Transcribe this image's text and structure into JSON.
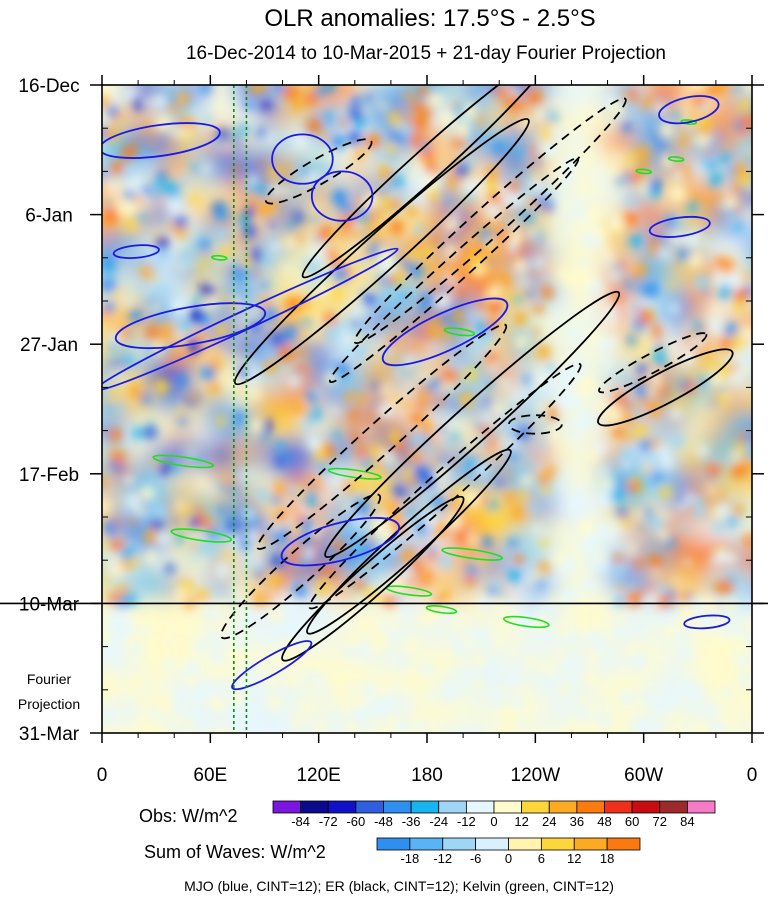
{
  "chart_data": {
    "type": "heatmap",
    "title": "OLR anomalies: 17.5°S - 2.5°S",
    "subtitle": "16-Dec-2014 to 10-Mar-2015 + 21-day Fourier Projection",
    "x_ticks": [
      "0",
      "60E",
      "120E",
      "180",
      "120W",
      "60W",
      "0"
    ],
    "y_ticks": [
      "16-Dec",
      "6-Jan",
      "27-Jan",
      "17-Feb",
      "10-Mar",
      "31-Mar"
    ],
    "y_annotation": [
      "Fourier",
      "Projection"
    ],
    "xlim_lon_east": [
      0,
      360
    ],
    "ylim_days_from_start": [
      0,
      105
    ],
    "projection_start_day": 84,
    "reference_lon_lines": [
      73,
      80
    ],
    "obs_colorbar": {
      "label": "Obs: W/m^2",
      "levels": [
        "-84",
        "-72",
        "-60",
        "-48",
        "-36",
        "-24",
        "-12",
        "0",
        "12",
        "24",
        "36",
        "48",
        "60",
        "72",
        "84"
      ],
      "colors": [
        "#7a16e0",
        "#0a0a8c",
        "#1010c8",
        "#2f5fe0",
        "#2f8ff0",
        "#18b4f0",
        "#9fd6f5",
        "#e6f7ff",
        "#fffbcc",
        "#fdd63c",
        "#fcaa24",
        "#fb7a10",
        "#f03018",
        "#c80c10",
        "#9c2a2a",
        "#f57ac8"
      ]
    },
    "waves_colorbar": {
      "label": "Sum of Waves: W/m^2",
      "levels": [
        "-18",
        "-12",
        "-6",
        "0",
        "6",
        "12",
        "18"
      ],
      "colors": [
        "#2f8ff0",
        "#58b4f5",
        "#9fd6f5",
        "#d8f0ff",
        "#fff4b0",
        "#fdd63c",
        "#fcaa24",
        "#fb7a10"
      ]
    },
    "footer": "MJO (blue, CINT=12); ER (black, CINT=12); Kelvin (green, CINT=12)",
    "contour_colors": {
      "mjo": "#1a1ae0",
      "er": "#000000",
      "kelvin": "#22dd22"
    },
    "mjo_contours": [
      {
        "lon": 32,
        "day": 9,
        "a": 8,
        "b": 2.5,
        "rot": -8
      },
      {
        "lon": 19,
        "day": 27,
        "a": 3,
        "b": 1,
        "rot": -5
      },
      {
        "lon": 49,
        "day": 39,
        "a": 10,
        "b": 3,
        "rot": -10
      },
      {
        "lon": 111,
        "day": 12,
        "a": 4,
        "b": 4,
        "rot": 0
      },
      {
        "lon": 133,
        "day": 18,
        "a": 4,
        "b": 4,
        "rot": 0
      },
      {
        "lon": 80,
        "day": 38,
        "a": 22,
        "b": 1.5,
        "rot": -25
      },
      {
        "lon": 132,
        "day": 74,
        "a": 8,
        "b": 3,
        "rot": -15
      },
      {
        "lon": 325,
        "day": 4,
        "a": 4,
        "b": 2,
        "rot": -12
      },
      {
        "lon": 320,
        "day": 23,
        "a": 4,
        "b": 1.5,
        "rot": -8
      },
      {
        "lon": 335,
        "day": 87,
        "a": 3,
        "b": 1,
        "rot": -5
      },
      {
        "lon": 94,
        "day": 94,
        "a": 6,
        "b": 1.5,
        "rot": -30
      },
      {
        "lon": 190,
        "day": 40,
        "a": 9,
        "b": 3,
        "rot": -25
      }
    ],
    "er_contours": [
      {
        "lon": 240,
        "day": 55,
        "a": 3.5,
        "b": 1.5,
        "rot": 0,
        "dash": true
      },
      {
        "lon": 180,
        "day": 13,
        "a": 22,
        "b": 2.5,
        "rot": -42,
        "dash": false
      },
      {
        "lon": 215,
        "day": 22,
        "a": 24,
        "b": 2.5,
        "rot": -42,
        "dash": true
      },
      {
        "lon": 155,
        "day": 27,
        "a": 26,
        "b": 3,
        "rot": -42,
        "dash": false
      },
      {
        "lon": 195,
        "day": 30,
        "a": 22,
        "b": 2,
        "rot": -42,
        "dash": true
      },
      {
        "lon": 205,
        "day": 55,
        "a": 26,
        "b": 3,
        "rot": -42,
        "dash": false
      },
      {
        "lon": 155,
        "day": 57,
        "a": 22,
        "b": 2.5,
        "rot": -42,
        "dash": true
      },
      {
        "lon": 190,
        "day": 65,
        "a": 24,
        "b": 2.5,
        "rot": -42,
        "dash": true
      },
      {
        "lon": 170,
        "day": 74,
        "a": 18,
        "b": 2.5,
        "rot": -42,
        "dash": false
      },
      {
        "lon": 110,
        "day": 78,
        "a": 14,
        "b": 2.5,
        "rot": -42,
        "dash": true
      },
      {
        "lon": 150,
        "day": 80,
        "a": 16,
        "b": 2.5,
        "rot": -42,
        "dash": false
      },
      {
        "lon": 120,
        "day": 14,
        "a": 8,
        "b": 2,
        "rot": -30,
        "dash": true
      },
      {
        "lon": 312,
        "day": 49,
        "a": 10,
        "b": 2.5,
        "rot": -28,
        "dash": false
      },
      {
        "lon": 305,
        "day": 45,
        "a": 8,
        "b": 1.5,
        "rot": -28,
        "dash": true
      }
    ],
    "kelvin_contours": [
      {
        "lon": 45,
        "day": 61,
        "a": 4,
        "b": 0.7,
        "rot": 8
      },
      {
        "lon": 140,
        "day": 63,
        "a": 3.5,
        "b": 0.6,
        "rot": 8
      },
      {
        "lon": 55,
        "day": 73,
        "a": 4,
        "b": 0.8,
        "rot": 8
      },
      {
        "lon": 205,
        "day": 76,
        "a": 4,
        "b": 0.7,
        "rot": 8
      },
      {
        "lon": 170,
        "day": 82,
        "a": 3,
        "b": 0.6,
        "rot": 8
      },
      {
        "lon": 235,
        "day": 87,
        "a": 3,
        "b": 0.7,
        "rot": 8
      },
      {
        "lon": 188,
        "day": 85,
        "a": 2,
        "b": 0.5,
        "rot": 8
      },
      {
        "lon": 198,
        "day": 40,
        "a": 2,
        "b": 0.5,
        "rot": 8
      },
      {
        "lon": 300,
        "day": 14,
        "a": 1,
        "b": 0.3,
        "rot": 5
      },
      {
        "lon": 65,
        "day": 28,
        "a": 1,
        "b": 0.3,
        "rot": 5
      },
      {
        "lon": 325,
        "day": 6,
        "a": 1,
        "b": 0.3,
        "rot": 5
      },
      {
        "lon": 318,
        "day": 12,
        "a": 1,
        "b": 0.3,
        "rot": 5
      }
    ]
  }
}
